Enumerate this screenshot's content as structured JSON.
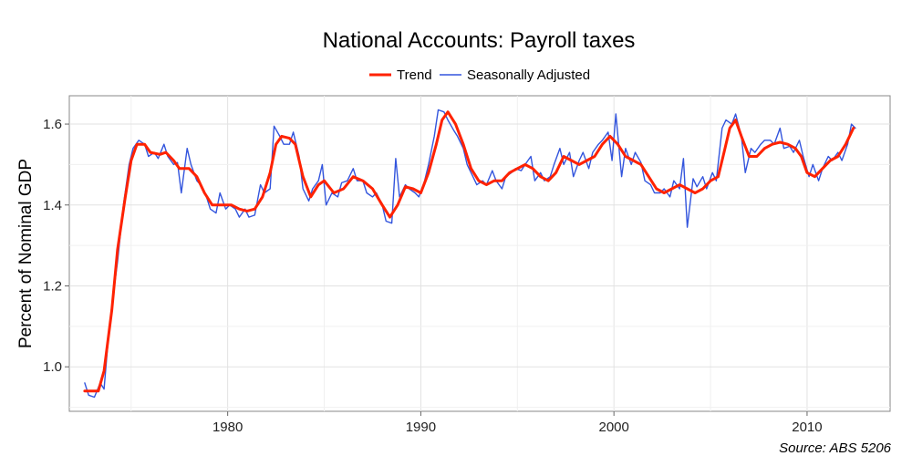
{
  "chart_data": {
    "type": "line",
    "title": "National Accounts: Payroll taxes",
    "ylabel": "Percent of Nominal GDP",
    "xlabel": "",
    "source": "Source: ABS 5206",
    "xlim": [
      1971.8,
      2014.3
    ],
    "ylim": [
      0.89,
      1.67
    ],
    "x_ticks": [
      1980,
      1990,
      2000,
      2010
    ],
    "x_tick_labels": [
      "1980",
      "1990",
      "2000",
      "2010"
    ],
    "y_ticks": [
      1.0,
      1.2,
      1.4,
      1.6
    ],
    "y_tick_labels": [
      "1.0",
      "1.2",
      "1.4",
      "1.6"
    ],
    "grid": true,
    "legend_position": "top-center",
    "series": [
      {
        "name": "Trend",
        "color": "#ff2200",
        "points": [
          [
            1972.6,
            0.94
          ],
          [
            1973.0,
            0.94
          ],
          [
            1973.3,
            0.94
          ],
          [
            1973.6,
            0.99
          ],
          [
            1974.0,
            1.14
          ],
          [
            1974.3,
            1.29
          ],
          [
            1974.7,
            1.42
          ],
          [
            1975.0,
            1.51
          ],
          [
            1975.3,
            1.55
          ],
          [
            1975.7,
            1.55
          ],
          [
            1976.0,
            1.53
          ],
          [
            1976.5,
            1.525
          ],
          [
            1976.8,
            1.53
          ],
          [
            1977.2,
            1.51
          ],
          [
            1977.5,
            1.49
          ],
          [
            1978.0,
            1.49
          ],
          [
            1978.4,
            1.47
          ],
          [
            1978.8,
            1.43
          ],
          [
            1979.2,
            1.4
          ],
          [
            1979.7,
            1.4
          ],
          [
            1980.2,
            1.4
          ],
          [
            1980.6,
            1.39
          ],
          [
            1981.0,
            1.385
          ],
          [
            1981.4,
            1.39
          ],
          [
            1981.8,
            1.42
          ],
          [
            1982.2,
            1.48
          ],
          [
            1982.5,
            1.55
          ],
          [
            1982.8,
            1.57
          ],
          [
            1983.2,
            1.565
          ],
          [
            1983.5,
            1.55
          ],
          [
            1983.9,
            1.47
          ],
          [
            1984.3,
            1.42
          ],
          [
            1984.7,
            1.45
          ],
          [
            1985.0,
            1.46
          ],
          [
            1985.5,
            1.43
          ],
          [
            1986.0,
            1.44
          ],
          [
            1986.5,
            1.47
          ],
          [
            1987.0,
            1.46
          ],
          [
            1987.5,
            1.44
          ],
          [
            1988.0,
            1.4
          ],
          [
            1988.4,
            1.37
          ],
          [
            1988.8,
            1.4
          ],
          [
            1989.2,
            1.445
          ],
          [
            1989.6,
            1.44
          ],
          [
            1990.0,
            1.43
          ],
          [
            1990.4,
            1.48
          ],
          [
            1990.8,
            1.55
          ],
          [
            1991.1,
            1.61
          ],
          [
            1991.4,
            1.63
          ],
          [
            1991.8,
            1.6
          ],
          [
            1992.2,
            1.55
          ],
          [
            1992.6,
            1.49
          ],
          [
            1993.0,
            1.46
          ],
          [
            1993.4,
            1.45
          ],
          [
            1993.8,
            1.46
          ],
          [
            1994.2,
            1.46
          ],
          [
            1994.6,
            1.48
          ],
          [
            1995.0,
            1.49
          ],
          [
            1995.4,
            1.5
          ],
          [
            1995.8,
            1.49
          ],
          [
            1996.2,
            1.47
          ],
          [
            1996.6,
            1.46
          ],
          [
            1997.0,
            1.48
          ],
          [
            1997.4,
            1.52
          ],
          [
            1997.8,
            1.51
          ],
          [
            1998.2,
            1.5
          ],
          [
            1998.6,
            1.51
          ],
          [
            1999.0,
            1.52
          ],
          [
            1999.4,
            1.55
          ],
          [
            1999.8,
            1.57
          ],
          [
            2000.2,
            1.55
          ],
          [
            2000.6,
            1.52
          ],
          [
            2001.0,
            1.51
          ],
          [
            2001.4,
            1.5
          ],
          [
            2001.8,
            1.47
          ],
          [
            2002.2,
            1.44
          ],
          [
            2002.6,
            1.43
          ],
          [
            2003.0,
            1.44
          ],
          [
            2003.4,
            1.45
          ],
          [
            2003.8,
            1.44
          ],
          [
            2004.2,
            1.43
          ],
          [
            2004.6,
            1.44
          ],
          [
            2005.0,
            1.46
          ],
          [
            2005.4,
            1.47
          ],
          [
            2005.7,
            1.53
          ],
          [
            2006.0,
            1.59
          ],
          [
            2006.3,
            1.61
          ],
          [
            2006.6,
            1.57
          ],
          [
            2007.0,
            1.52
          ],
          [
            2007.4,
            1.52
          ],
          [
            2007.8,
            1.54
          ],
          [
            2008.2,
            1.55
          ],
          [
            2008.6,
            1.555
          ],
          [
            2009.0,
            1.55
          ],
          [
            2009.4,
            1.54
          ],
          [
            2009.7,
            1.52
          ],
          [
            2010.0,
            1.48
          ],
          [
            2010.4,
            1.47
          ],
          [
            2010.8,
            1.49
          ],
          [
            2011.2,
            1.51
          ],
          [
            2011.6,
            1.52
          ],
          [
            2012.0,
            1.55
          ],
          [
            2012.4,
            1.59
          ]
        ]
      },
      {
        "name": "Seasonally Adjusted",
        "color": "#3355dd",
        "points": [
          [
            1972.6,
            0.96
          ],
          [
            1972.8,
            0.93
          ],
          [
            1973.1,
            0.925
          ],
          [
            1973.4,
            0.96
          ],
          [
            1973.6,
            0.945
          ],
          [
            1973.8,
            1.06
          ],
          [
            1974.0,
            1.15
          ],
          [
            1974.3,
            1.26
          ],
          [
            1974.6,
            1.4
          ],
          [
            1974.9,
            1.5
          ],
          [
            1975.1,
            1.54
          ],
          [
            1975.4,
            1.56
          ],
          [
            1975.7,
            1.55
          ],
          [
            1975.9,
            1.52
          ],
          [
            1976.2,
            1.53
          ],
          [
            1976.4,
            1.515
          ],
          [
            1976.7,
            1.55
          ],
          [
            1976.9,
            1.52
          ],
          [
            1977.2,
            1.5
          ],
          [
            1977.4,
            1.505
          ],
          [
            1977.6,
            1.43
          ],
          [
            1977.9,
            1.54
          ],
          [
            1978.1,
            1.5
          ],
          [
            1978.4,
            1.46
          ],
          [
            1978.6,
            1.45
          ],
          [
            1978.9,
            1.42
          ],
          [
            1979.1,
            1.39
          ],
          [
            1979.4,
            1.38
          ],
          [
            1979.6,
            1.43
          ],
          [
            1979.9,
            1.39
          ],
          [
            1980.1,
            1.4
          ],
          [
            1980.4,
            1.39
          ],
          [
            1980.6,
            1.37
          ],
          [
            1980.9,
            1.39
          ],
          [
            1981.1,
            1.37
          ],
          [
            1981.4,
            1.375
          ],
          [
            1981.7,
            1.45
          ],
          [
            1981.9,
            1.43
          ],
          [
            1982.2,
            1.44
          ],
          [
            1982.4,
            1.595
          ],
          [
            1982.7,
            1.57
          ],
          [
            1982.9,
            1.55
          ],
          [
            1983.2,
            1.55
          ],
          [
            1983.4,
            1.58
          ],
          [
            1983.7,
            1.52
          ],
          [
            1983.9,
            1.44
          ],
          [
            1984.2,
            1.41
          ],
          [
            1984.4,
            1.44
          ],
          [
            1984.7,
            1.46
          ],
          [
            1984.9,
            1.5
          ],
          [
            1985.1,
            1.4
          ],
          [
            1985.4,
            1.43
          ],
          [
            1985.7,
            1.42
          ],
          [
            1985.9,
            1.455
          ],
          [
            1986.2,
            1.46
          ],
          [
            1986.5,
            1.49
          ],
          [
            1986.7,
            1.46
          ],
          [
            1987.0,
            1.46
          ],
          [
            1987.2,
            1.43
          ],
          [
            1987.5,
            1.42
          ],
          [
            1987.7,
            1.43
          ],
          [
            1988.0,
            1.4
          ],
          [
            1988.2,
            1.36
          ],
          [
            1988.5,
            1.355
          ],
          [
            1988.7,
            1.515
          ],
          [
            1988.9,
            1.42
          ],
          [
            1989.2,
            1.45
          ],
          [
            1989.4,
            1.44
          ],
          [
            1989.7,
            1.43
          ],
          [
            1989.9,
            1.42
          ],
          [
            1990.2,
            1.46
          ],
          [
            1990.4,
            1.5
          ],
          [
            1990.7,
            1.57
          ],
          [
            1990.9,
            1.635
          ],
          [
            1991.2,
            1.63
          ],
          [
            1991.4,
            1.61
          ],
          [
            1991.7,
            1.585
          ],
          [
            1991.9,
            1.57
          ],
          [
            1992.2,
            1.54
          ],
          [
            1992.4,
            1.5
          ],
          [
            1992.7,
            1.47
          ],
          [
            1992.9,
            1.45
          ],
          [
            1993.2,
            1.46
          ],
          [
            1993.4,
            1.45
          ],
          [
            1993.7,
            1.485
          ],
          [
            1993.9,
            1.46
          ],
          [
            1994.2,
            1.44
          ],
          [
            1994.4,
            1.47
          ],
          [
            1994.7,
            1.48
          ],
          [
            1994.9,
            1.49
          ],
          [
            1995.2,
            1.485
          ],
          [
            1995.4,
            1.5
          ],
          [
            1995.7,
            1.52
          ],
          [
            1995.9,
            1.46
          ],
          [
            1996.2,
            1.48
          ],
          [
            1996.4,
            1.46
          ],
          [
            1996.7,
            1.47
          ],
          [
            1996.9,
            1.5
          ],
          [
            1997.2,
            1.54
          ],
          [
            1997.4,
            1.5
          ],
          [
            1997.7,
            1.53
          ],
          [
            1997.9,
            1.47
          ],
          [
            1998.2,
            1.51
          ],
          [
            1998.4,
            1.53
          ],
          [
            1998.7,
            1.49
          ],
          [
            1998.9,
            1.53
          ],
          [
            1999.2,
            1.55
          ],
          [
            1999.4,
            1.56
          ],
          [
            1999.7,
            1.58
          ],
          [
            1999.9,
            1.51
          ],
          [
            2000.1,
            1.625
          ],
          [
            2000.4,
            1.47
          ],
          [
            2000.6,
            1.54
          ],
          [
            2000.9,
            1.5
          ],
          [
            2001.1,
            1.53
          ],
          [
            2001.4,
            1.505
          ],
          [
            2001.6,
            1.46
          ],
          [
            2001.9,
            1.45
          ],
          [
            2002.1,
            1.43
          ],
          [
            2002.4,
            1.43
          ],
          [
            2002.6,
            1.44
          ],
          [
            2002.9,
            1.42
          ],
          [
            2003.1,
            1.46
          ],
          [
            2003.4,
            1.44
          ],
          [
            2003.6,
            1.515
          ],
          [
            2003.8,
            1.345
          ],
          [
            2004.1,
            1.465
          ],
          [
            2004.3,
            1.445
          ],
          [
            2004.6,
            1.47
          ],
          [
            2004.8,
            1.44
          ],
          [
            2005.1,
            1.48
          ],
          [
            2005.3,
            1.46
          ],
          [
            2005.6,
            1.59
          ],
          [
            2005.8,
            1.61
          ],
          [
            2006.1,
            1.6
          ],
          [
            2006.3,
            1.625
          ],
          [
            2006.6,
            1.57
          ],
          [
            2006.8,
            1.48
          ],
          [
            2007.1,
            1.54
          ],
          [
            2007.3,
            1.53
          ],
          [
            2007.6,
            1.55
          ],
          [
            2007.8,
            1.56
          ],
          [
            2008.1,
            1.56
          ],
          [
            2008.3,
            1.55
          ],
          [
            2008.6,
            1.59
          ],
          [
            2008.8,
            1.54
          ],
          [
            2009.1,
            1.545
          ],
          [
            2009.3,
            1.53
          ],
          [
            2009.6,
            1.56
          ],
          [
            2009.8,
            1.52
          ],
          [
            2010.1,
            1.47
          ],
          [
            2010.3,
            1.5
          ],
          [
            2010.6,
            1.46
          ],
          [
            2010.8,
            1.49
          ],
          [
            2011.1,
            1.52
          ],
          [
            2011.3,
            1.51
          ],
          [
            2011.6,
            1.53
          ],
          [
            2011.8,
            1.51
          ],
          [
            2012.1,
            1.55
          ],
          [
            2012.3,
            1.6
          ],
          [
            2012.5,
            1.59
          ]
        ]
      }
    ]
  }
}
